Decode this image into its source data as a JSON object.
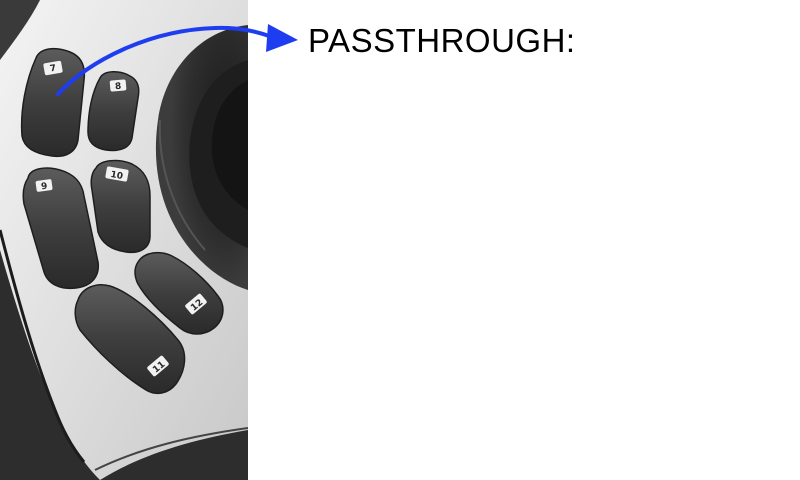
{
  "caption": "PASSTHROUGH:",
  "keys": {
    "k7": "7",
    "k8": "8",
    "k9": "9",
    "k10": "10",
    "k11": "11",
    "k12": "12"
  },
  "colors": {
    "arrow": "#1f3df0",
    "device_body": "#e6e6e6",
    "device_dark": "#2b2b2b",
    "key": "#3a3a3a",
    "key_highlight": "#5a5a5a",
    "key_label_bg": "#f2f2f2"
  }
}
